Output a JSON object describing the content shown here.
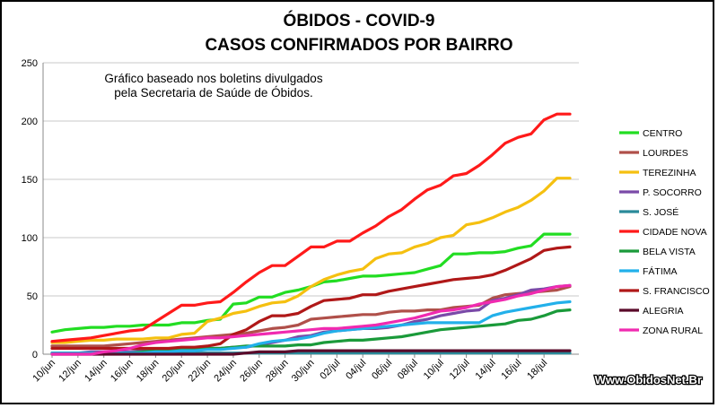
{
  "chart_data": {
    "type": "line",
    "title_line1": "ÓBIDOS - COVID-9",
    "title_line2": "CASOS CONFIRMADOS POR BAIRRO",
    "note_line1": "Gráfico baseado nos boletins divulgados",
    "note_line2": "pela Secretaria de Saúde de Óbidos.",
    "watermark": "Www.ObidosNet.Br",
    "ylim": [
      0,
      250
    ],
    "yticks": [
      0,
      50,
      100,
      150,
      200,
      250
    ],
    "grid": true,
    "legend": "right",
    "x_count": 41,
    "x_tick_labels": [
      "10/jun",
      "12/jun",
      "14/jun",
      "16/jun",
      "18/jun",
      "20/jun",
      "22/jun",
      "24/jun",
      "26/jun",
      "28/jun",
      "30/jun",
      "02/jul",
      "04/jul",
      "06/jul",
      "08/jul",
      "10/jul",
      "12/jul",
      "14/jul",
      "16/jul",
      "18/jul"
    ],
    "series": [
      {
        "name": "CENTRO",
        "color": "#22dd22",
        "values": [
          19,
          21,
          22,
          23,
          23,
          24,
          24,
          25,
          25,
          25,
          27,
          27,
          29,
          30,
          43,
          44,
          49,
          49,
          53,
          55,
          58,
          62,
          63,
          65,
          67,
          67,
          68,
          69,
          70,
          73,
          76,
          86,
          86,
          87,
          87,
          88,
          91,
          93,
          103,
          103,
          103
        ]
      },
      {
        "name": "LOURDES",
        "color": "#b0504a",
        "values": [
          7,
          7,
          7,
          7,
          7,
          8,
          9,
          10,
          11,
          12,
          13,
          14,
          15,
          16,
          17,
          18,
          20,
          22,
          23,
          25,
          30,
          31,
          32,
          33,
          34,
          34,
          36,
          37,
          37,
          38,
          38,
          40,
          41,
          42,
          48,
          51,
          52,
          53,
          54,
          55,
          58
        ]
      },
      {
        "name": "TEREZINHA",
        "color": "#f5c010",
        "values": [
          10,
          10,
          11,
          12,
          12,
          13,
          13,
          13,
          14,
          14,
          17,
          18,
          28,
          31,
          35,
          37,
          41,
          44,
          45,
          50,
          58,
          64,
          68,
          71,
          73,
          82,
          86,
          87,
          92,
          95,
          100,
          102,
          111,
          113,
          117,
          122,
          126,
          132,
          140,
          151,
          151
        ]
      },
      {
        "name": "P. SOCORRO",
        "color": "#7a4aa8",
        "values": [
          1,
          1,
          1,
          2,
          2,
          2,
          2,
          3,
          3,
          3,
          4,
          5,
          5,
          5,
          6,
          6,
          8,
          10,
          12,
          15,
          16,
          19,
          20,
          21,
          22,
          22,
          23,
          25,
          28,
          30,
          33,
          35,
          37,
          38,
          46,
          48,
          51,
          55,
          56,
          58,
          59
        ]
      },
      {
        "name": "S. JOSÉ",
        "color": "#2a8a9a",
        "values": [
          1,
          1,
          1,
          1,
          1,
          1,
          1,
          1,
          1,
          1,
          1,
          1,
          1,
          1,
          1,
          1,
          1,
          1,
          1,
          1,
          1,
          1,
          1,
          1,
          1,
          1,
          1,
          1,
          1,
          1,
          1,
          1,
          1,
          1,
          1,
          1,
          1,
          1,
          1,
          1,
          1
        ]
      },
      {
        "name": "CIDADE NOVA",
        "color": "#ff1a1a",
        "values": [
          11,
          12,
          13,
          14,
          16,
          18,
          20,
          21,
          28,
          35,
          42,
          42,
          44,
          45,
          53,
          62,
          70,
          76,
          76,
          84,
          92,
          92,
          97,
          97,
          104,
          110,
          118,
          124,
          133,
          141,
          145,
          153,
          155,
          162,
          171,
          181,
          186,
          189,
          201,
          206,
          206
        ]
      },
      {
        "name": "BELA VISTA",
        "color": "#1a9a3a",
        "values": [
          1,
          1,
          1,
          1,
          1,
          1,
          1,
          2,
          3,
          4,
          5,
          5,
          5,
          5,
          6,
          7,
          7,
          7,
          7,
          8,
          8,
          10,
          11,
          12,
          12,
          13,
          14,
          15,
          17,
          19,
          21,
          22,
          23,
          24,
          25,
          26,
          29,
          30,
          33,
          37,
          38
        ]
      },
      {
        "name": "FÁTIMA",
        "color": "#22b0ea",
        "values": [
          1,
          1,
          1,
          1,
          1,
          1,
          1,
          1,
          2,
          2,
          3,
          3,
          4,
          4,
          5,
          6,
          9,
          11,
          12,
          13,
          15,
          18,
          20,
          21,
          22,
          23,
          24,
          25,
          26,
          27,
          27,
          27,
          27,
          27,
          33,
          36,
          38,
          40,
          42,
          44,
          45
        ]
      },
      {
        "name": "S. FRANCISCO",
        "color": "#b01818",
        "values": [
          5,
          5,
          5,
          5,
          5,
          5,
          5,
          5,
          5,
          5,
          6,
          6,
          7,
          9,
          17,
          21,
          28,
          33,
          33,
          35,
          41,
          46,
          47,
          48,
          51,
          51,
          54,
          56,
          58,
          60,
          62,
          64,
          65,
          66,
          68,
          72,
          77,
          82,
          89,
          91,
          92
        ]
      },
      {
        "name": "ALEGRIA",
        "color": "#5a0a2a",
        "values": [
          0,
          0,
          0,
          0,
          0,
          0,
          0,
          0,
          0,
          0,
          0,
          0,
          0,
          0,
          0,
          1,
          2,
          2,
          2,
          3,
          3,
          3,
          3,
          3,
          3,
          3,
          3,
          3,
          3,
          3,
          3,
          3,
          3,
          3,
          3,
          3,
          3,
          3,
          3,
          3,
          3
        ]
      },
      {
        "name": "ZONA RURAL",
        "color": "#f02ab0",
        "values": [
          0,
          0,
          0,
          0,
          2,
          3,
          5,
          8,
          10,
          11,
          12,
          13,
          14,
          14,
          15,
          16,
          17,
          18,
          19,
          20,
          21,
          22,
          22,
          23,
          24,
          25,
          27,
          29,
          31,
          34,
          37,
          38,
          40,
          43,
          45,
          47,
          50,
          52,
          55,
          58,
          59
        ]
      }
    ]
  }
}
